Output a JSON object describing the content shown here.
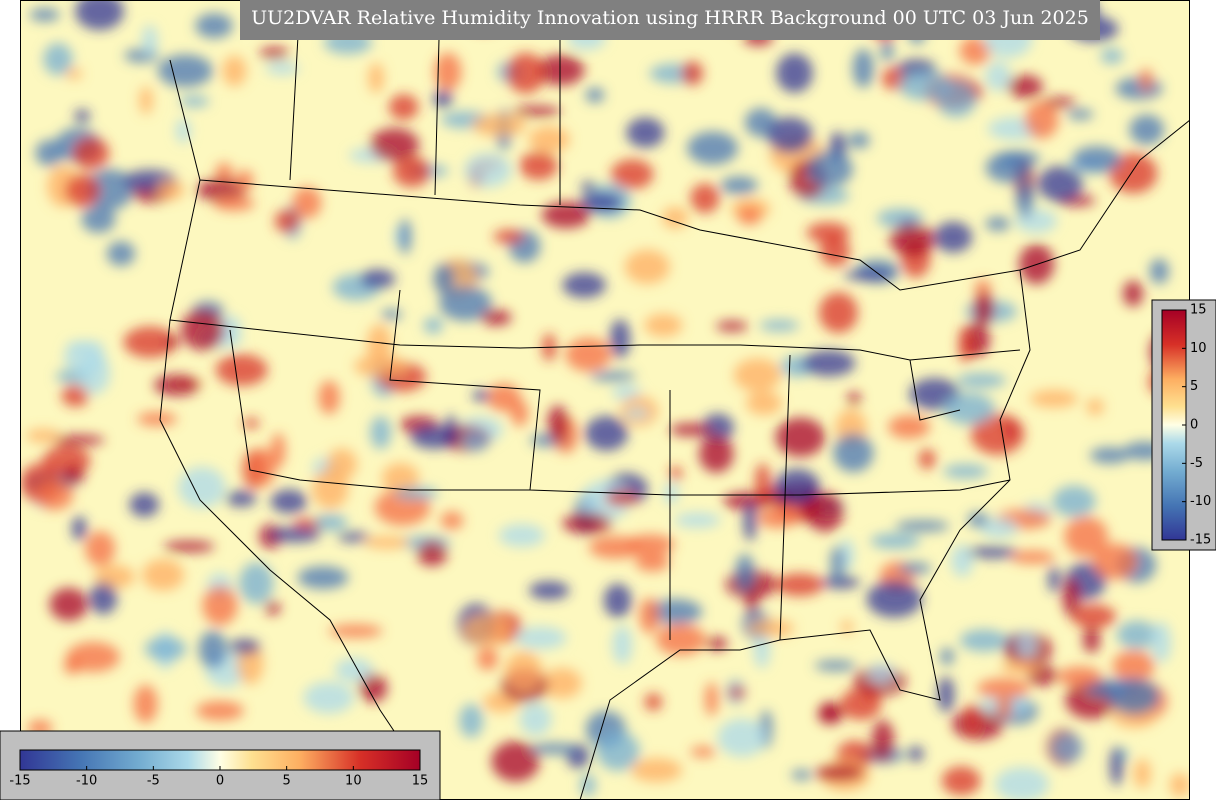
{
  "title": "UU2DVAR Relative Humidity Innovation using HRRR Background 00 UTC 03 Jun 2025",
  "colorbars": [
    {
      "orientation": "vertical",
      "min": -15,
      "max": 15,
      "ticks": [
        15,
        10,
        5,
        0,
        -5,
        -10,
        -15
      ]
    },
    {
      "orientation": "horizontal",
      "min": -15,
      "max": 15,
      "ticks": [
        -15,
        -10,
        -5,
        0,
        5,
        10,
        15
      ]
    }
  ]
}
